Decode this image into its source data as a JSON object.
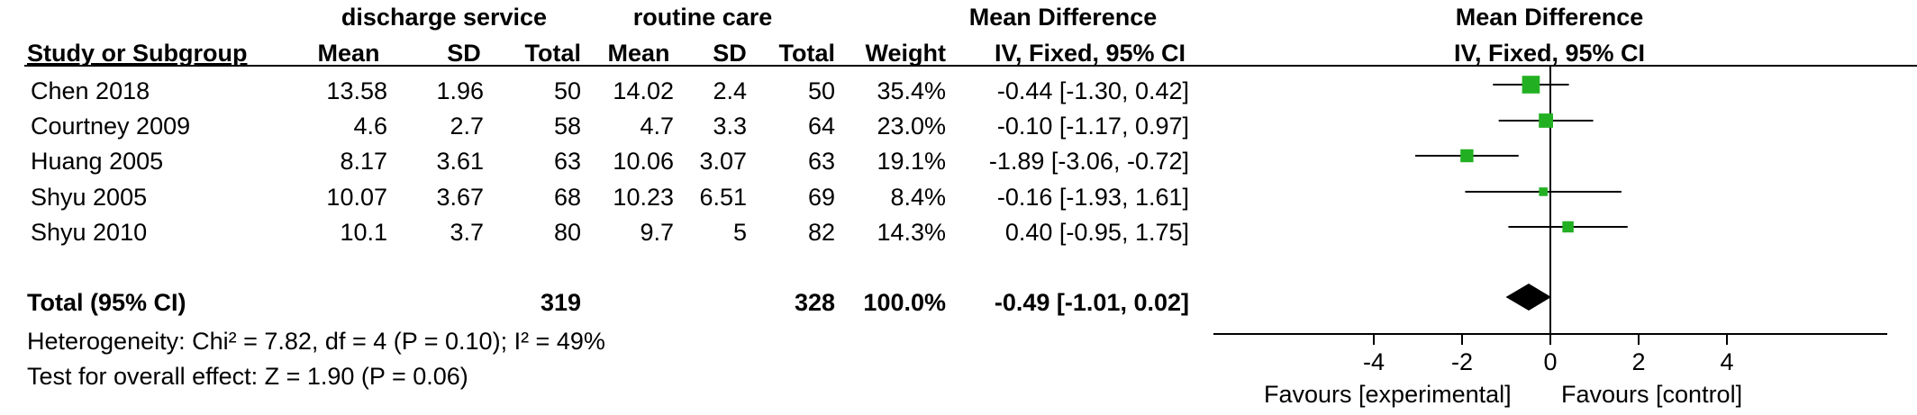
{
  "groups": {
    "experimental": "discharge service",
    "control": "routine care",
    "effect_header": "Mean Difference",
    "plot_header": "Mean Difference"
  },
  "columns": {
    "study": "Study or Subgroup",
    "mean_e": "Mean",
    "sd_e": "SD",
    "total_e": "Total",
    "mean_c": "Mean",
    "sd_c": "SD",
    "total_c": "Total",
    "weight": "Weight",
    "ci": "IV, Fixed, 95% CI",
    "plot_ci": "IV, Fixed, 95% CI"
  },
  "studies": [
    {
      "name": "Chen 2018",
      "mean_e": "13.58",
      "sd_e": "1.96",
      "total_e": "50",
      "mean_c": "14.02",
      "sd_c": "2.4",
      "total_c": "50",
      "weight": "35.4%",
      "ci": "-0.44 [-1.30, 0.42]"
    },
    {
      "name": "Courtney 2009",
      "mean_e": "4.6",
      "sd_e": "2.7",
      "total_e": "58",
      "mean_c": "4.7",
      "sd_c": "3.3",
      "total_c": "64",
      "weight": "23.0%",
      "ci": "-0.10 [-1.17, 0.97]"
    },
    {
      "name": "Huang 2005",
      "mean_e": "8.17",
      "sd_e": "3.61",
      "total_e": "63",
      "mean_c": "10.06",
      "sd_c": "3.07",
      "total_c": "63",
      "weight": "19.1%",
      "ci": "-1.89 [-3.06, -0.72]"
    },
    {
      "name": "Shyu 2005",
      "mean_e": "10.07",
      "sd_e": "3.67",
      "total_e": "68",
      "mean_c": "10.23",
      "sd_c": "6.51",
      "total_c": "69",
      "weight": "8.4%",
      "ci": "-0.16 [-1.93, 1.61]"
    },
    {
      "name": "Shyu 2010",
      "mean_e": "10.1",
      "sd_e": "3.7",
      "total_e": "80",
      "mean_c": "9.7",
      "sd_c": "5",
      "total_c": "82",
      "weight": "14.3%",
      "ci": "0.40 [-0.95, 1.75]"
    }
  ],
  "total": {
    "label": "Total (95% CI)",
    "total_e": "319",
    "total_c": "328",
    "weight": "100.0%",
    "ci": "-0.49 [-1.01, 0.02]"
  },
  "heterogeneity": "Heterogeneity: Chi² = 7.82, df = 4 (P = 0.10); I² = 49%",
  "overall_effect": "Test for overall effect: Z = 1.90 (P = 0.06)",
  "favours_left": "Favours [experimental]",
  "favours_right": "Favours [control]",
  "colors": {
    "marker": "#22b022",
    "diamond": "#000000",
    "line": "#000000"
  },
  "chart_data": {
    "type": "forest",
    "x_ticks": [
      -4,
      -2,
      0,
      2,
      4
    ],
    "xlim": [
      -7.5,
      7.5
    ],
    "studies": [
      {
        "name": "Chen 2018",
        "md": -0.44,
        "lower": -1.3,
        "upper": 0.42,
        "weight": 35.4
      },
      {
        "name": "Courtney 2009",
        "md": -0.1,
        "lower": -1.17,
        "upper": 0.97,
        "weight": 23.0
      },
      {
        "name": "Huang 2005",
        "md": -1.89,
        "lower": -3.06,
        "upper": -0.72,
        "weight": 19.1
      },
      {
        "name": "Shyu 2005",
        "md": -0.16,
        "lower": -1.93,
        "upper": 1.61,
        "weight": 8.4
      },
      {
        "name": "Shyu 2010",
        "md": 0.4,
        "lower": -0.95,
        "upper": 1.75,
        "weight": 14.3
      }
    ],
    "pooled": {
      "md": -0.49,
      "lower": -1.01,
      "upper": 0.02
    }
  }
}
